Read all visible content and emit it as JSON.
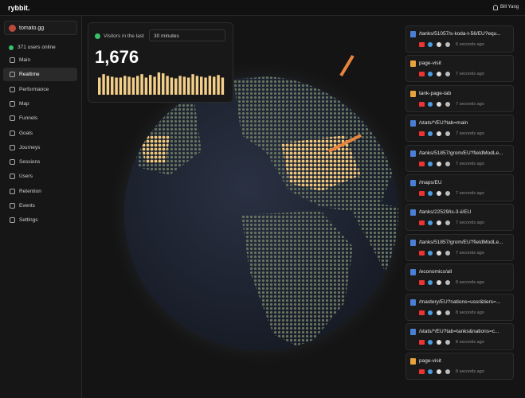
{
  "header": {
    "logo": "rybbit.",
    "user": "Bill Yang"
  },
  "sidebar": {
    "site": "tomato.gg",
    "online": "371 users online",
    "active": 1,
    "nav": [
      "Main",
      "Realtime",
      "Performance",
      "Map",
      "Funnels",
      "Goals",
      "Journeys",
      "Sessions",
      "Users",
      "Retention",
      "Events",
      "Settings"
    ]
  },
  "visitors": {
    "label": "Visitors in the last",
    "range": "30 minutes",
    "count": "1,676",
    "bar_color": "#f3cf8a",
    "bars": [
      20,
      24,
      22,
      21,
      20,
      20,
      22,
      21,
      20,
      22,
      24,
      20,
      23,
      21,
      26,
      25,
      22,
      20,
      19,
      22,
      21,
      20,
      24,
      22,
      21,
      20,
      22,
      21,
      23,
      20
    ]
  },
  "events": [
    {
      "path": "/tanks/51057/s-koda-t-56/EU?equ...",
      "time": "6 seconds ago",
      "icon": "#4a7fd6"
    },
    {
      "path": "page-visit",
      "time": "7 seconds ago",
      "icon": "#e8a33d"
    },
    {
      "path": "tank-page-tab",
      "time": "7 seconds ago",
      "icon": "#e8a33d"
    },
    {
      "path": "/stats/*/EU?tab=main",
      "time": "7 seconds ago",
      "icon": "#4a7fd6"
    },
    {
      "path": "/tanks/51857/grom/EU?fieldModLe...",
      "time": "7 seconds ago",
      "icon": "#4a7fd6"
    },
    {
      "path": "/maps/EU",
      "time": "7 seconds ago",
      "icon": "#4a7fd6"
    },
    {
      "path": "/tanks/22529/is-3-ii/EU",
      "time": "7 seconds ago",
      "icon": "#4a7fd6"
    },
    {
      "path": "/tanks/51857/grom/EU?fieldModLe...",
      "time": "7 seconds ago",
      "icon": "#4a7fd6"
    },
    {
      "path": "/economics/all",
      "time": "8 seconds ago",
      "icon": "#4a7fd6"
    },
    {
      "path": "/mastery/EU?nations=ussr&tiers=...",
      "time": "8 seconds ago",
      "icon": "#4a7fd6"
    },
    {
      "path": "/stats/*/EU?tab=tanks&nations=c...",
      "time": "8 seconds ago",
      "icon": "#4a7fd6"
    },
    {
      "path": "page-visit",
      "time": "8 seconds ago",
      "icon": "#e8a33d"
    }
  ]
}
